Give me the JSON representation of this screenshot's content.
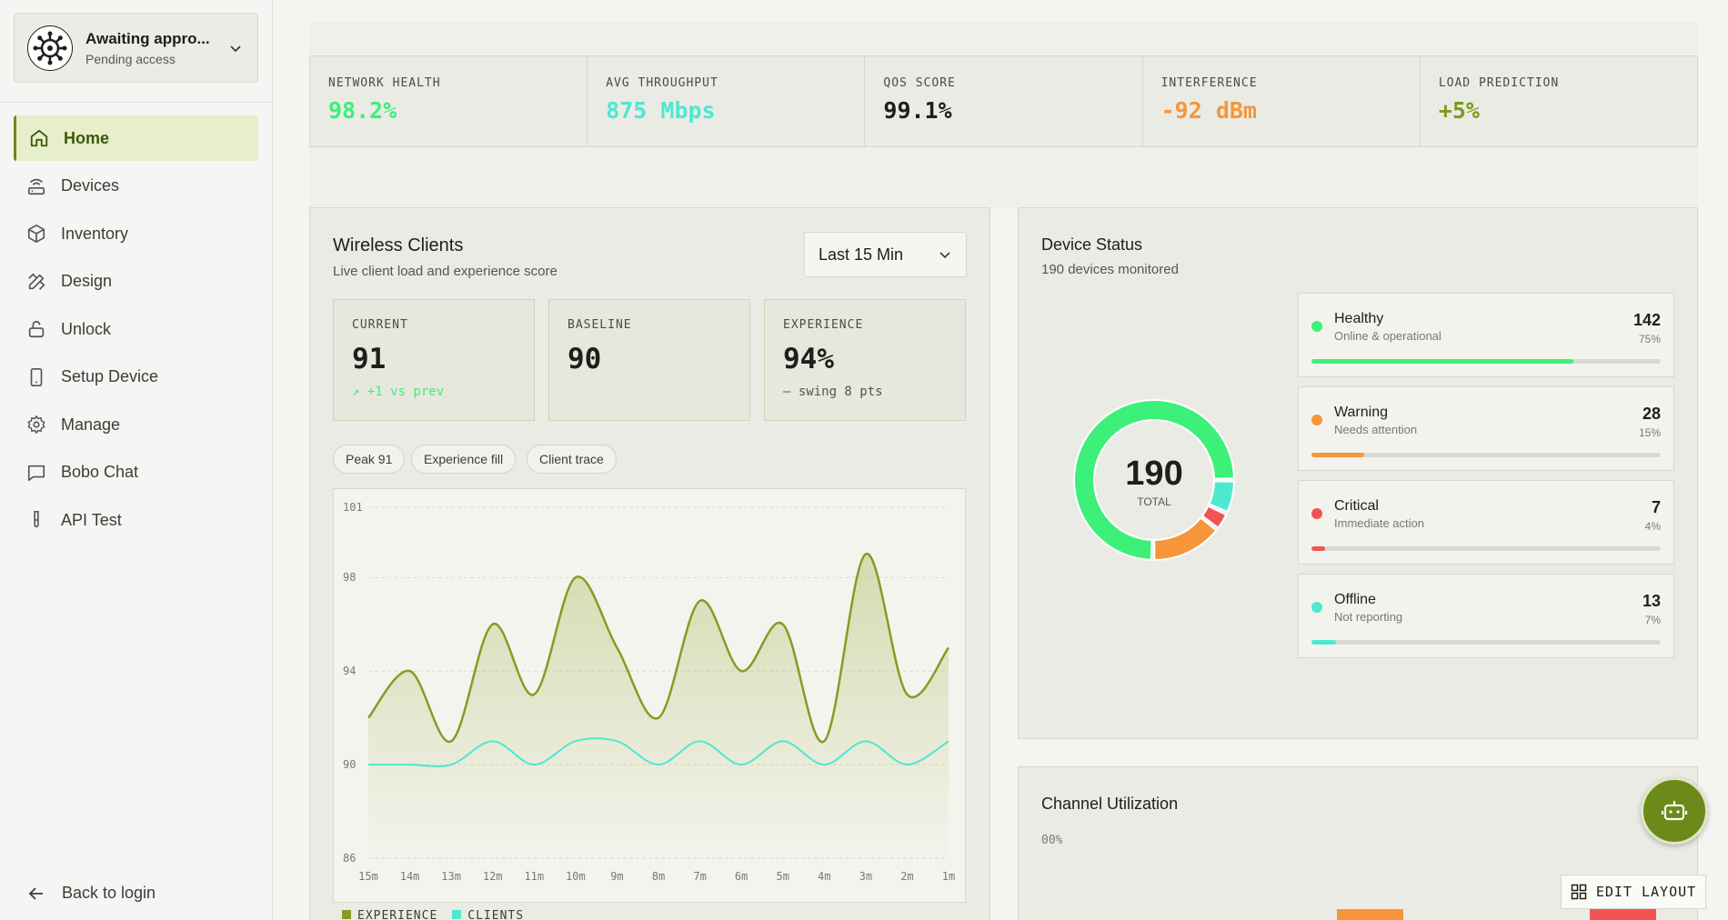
{
  "account": {
    "name": "Awaiting appro...",
    "status": "Pending access"
  },
  "nav": [
    {
      "label": "Home",
      "icon": "home-icon"
    },
    {
      "label": "Devices",
      "icon": "router-icon"
    },
    {
      "label": "Inventory",
      "icon": "package-icon"
    },
    {
      "label": "Design",
      "icon": "design-icon"
    },
    {
      "label": "Unlock",
      "icon": "unlock-icon"
    },
    {
      "label": "Setup Device",
      "icon": "phone-icon"
    },
    {
      "label": "Manage",
      "icon": "gear-icon"
    },
    {
      "label": "Bobo Chat",
      "icon": "chat-icon"
    },
    {
      "label": "API Test",
      "icon": "test-tube-icon"
    }
  ],
  "back_label": "Back to login",
  "metrics": [
    {
      "label": "NETWORK HEALTH",
      "value": "98.2%",
      "color": "#3cf07a"
    },
    {
      "label": "AVG THROUGHPUT",
      "value": "875 Mbps",
      "color": "#4ee8cf"
    },
    {
      "label": "QOS SCORE",
      "value": "99.1%",
      "color": "#1d1f1a"
    },
    {
      "label": "INTERFERENCE",
      "value": "-92 dBm",
      "color": "#f7953a"
    },
    {
      "label": "LOAD PREDICTION",
      "value": "+5%",
      "color": "#7a9a1e"
    }
  ],
  "wireless": {
    "title": "Wireless Clients",
    "subtitle": "Live client load and experience score",
    "range": "Last 15 Min",
    "kpis": [
      {
        "label": "CURRENT",
        "value": "91",
        "note": "↗ +1 vs prev",
        "note_color": "#3cf07a"
      },
      {
        "label": "BASELINE",
        "value": "90",
        "note": "",
        "note_color": "#555"
      },
      {
        "label": "EXPERIENCE",
        "value": "94%",
        "note": "— swing 8 pts",
        "note_color": "#555"
      }
    ],
    "chips": [
      "Peak 91",
      "Experience fill",
      "Client trace"
    ],
    "legend": [
      {
        "label": "EXPERIENCE",
        "color": "#8a9a22"
      },
      {
        "label": "CLIENTS",
        "color": "#4ee8cf"
      }
    ]
  },
  "chart_data": {
    "type": "line",
    "x": [
      "15m",
      "14m",
      "13m",
      "12m",
      "11m",
      "10m",
      "9m",
      "8m",
      "7m",
      "6m",
      "5m",
      "4m",
      "3m",
      "2m",
      "1m"
    ],
    "yticks": [
      "101",
      "98",
      "94",
      "90",
      "86"
    ],
    "ylim": [
      86,
      101
    ],
    "series": [
      {
        "name": "EXPERIENCE",
        "values": [
          92,
          94,
          91,
          96,
          93,
          98,
          95,
          92,
          97,
          94,
          96,
          91,
          99,
          93,
          95
        ],
        "color": "#8a9a22"
      },
      {
        "name": "CLIENTS",
        "values": [
          90,
          90,
          90,
          91,
          90,
          91,
          91,
          90,
          91,
          90,
          91,
          90,
          91,
          90,
          91
        ],
        "color": "#4ee8cf"
      }
    ]
  },
  "device_status": {
    "title": "Device Status",
    "subtitle": "190 devices monitored",
    "total": "190",
    "total_label": "TOTAL",
    "rows": [
      {
        "name": "Healthy",
        "desc": "Online & operational",
        "count": "142",
        "pct": "75%",
        "fraction": 0.75,
        "color": "#3cf07a"
      },
      {
        "name": "Warning",
        "desc": "Needs attention",
        "count": "28",
        "pct": "15%",
        "fraction": 0.15,
        "color": "#f7953a"
      },
      {
        "name": "Critical",
        "desc": "Immediate action",
        "count": "7",
        "pct": "4%",
        "fraction": 0.04,
        "color": "#f25454"
      },
      {
        "name": "Offline",
        "desc": "Not reporting",
        "count": "13",
        "pct": "7%",
        "fraction": 0.07,
        "color": "#4ee8cf"
      }
    ]
  },
  "channel": {
    "title": "Channel Utilization",
    "axis_label": "00%"
  },
  "edit_layout_label": "EDIT LAYOUT"
}
